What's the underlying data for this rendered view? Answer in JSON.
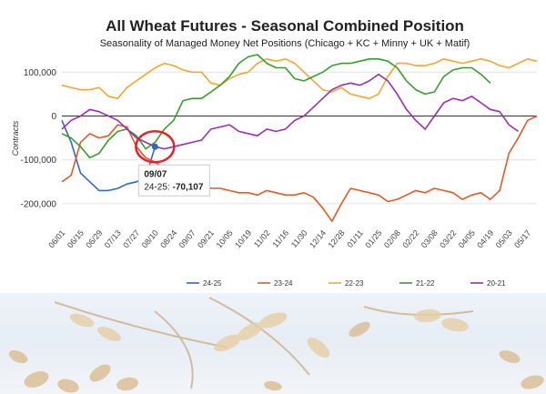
{
  "chart_data": {
    "type": "line",
    "title": "All Wheat Futures - Seasonal Combined Position",
    "subtitle": "Seasonality of Managed Money Net Positions (Chicago + KC + Minny + UK + Matif)",
    "ylabel": "Contracts",
    "xlabel": "",
    "ylim": [
      -250000,
      140000
    ],
    "yticks": [
      {
        "value": 100000,
        "label": "100,000"
      },
      {
        "value": 0,
        "label": "0"
      },
      {
        "value": -100000,
        "label": "-100,000"
      },
      {
        "value": -200000,
        "label": "-200,000"
      }
    ],
    "x_tick_labels": [
      "06/01",
      "06/15",
      "06/29",
      "07/13",
      "07/27",
      "08/10",
      "08/24",
      "09/07",
      "09/21",
      "10/05",
      "10/19",
      "11/02",
      "11/16",
      "11/30",
      "12/14",
      "12/28",
      "01/11",
      "01/25",
      "02/08",
      "02/22",
      "03/08",
      "03/22",
      "04/05",
      "04/19",
      "05/03",
      "05/17"
    ],
    "grid": true,
    "legend_position": "bottom",
    "series": [
      {
        "name": "24-25",
        "color": "#3366cc",
        "x_start": 0,
        "values": [
          -10000,
          -60000,
          -130000,
          -150000,
          -170000,
          -170000,
          -165000,
          -155000,
          -150000,
          -140000,
          -70107
        ]
      },
      {
        "name": "23-24",
        "color": "#e05a27",
        "x_start": 0,
        "values": [
          -150000,
          -135000,
          -60000,
          -40000,
          -50000,
          -45000,
          -20000,
          -25000,
          -70000,
          -95000,
          -105000,
          -120000,
          -140000,
          -145000,
          -150000,
          -155000,
          -165000,
          -165000,
          -170000,
          -175000,
          -175000,
          -180000,
          -170000,
          -175000,
          -180000,
          -180000,
          -175000,
          -185000,
          -210000,
          -240000,
          -200000,
          -165000,
          -170000,
          -175000,
          -180000,
          -195000,
          -190000,
          -180000,
          -170000,
          -175000,
          -165000,
          -170000,
          -175000,
          -190000,
          -180000,
          -175000,
          -190000,
          -170000,
          -85000,
          -50000,
          -10000,
          0
        ]
      },
      {
        "name": "22-23",
        "color": "#f0a830",
        "x_start": 0,
        "values": [
          70000,
          65000,
          60000,
          60000,
          65000,
          45000,
          40000,
          65000,
          80000,
          95000,
          110000,
          120000,
          115000,
          105000,
          100000,
          100000,
          75000,
          70000,
          85000,
          95000,
          100000,
          120000,
          130000,
          125000,
          130000,
          120000,
          100000,
          80000,
          60000,
          55000,
          65000,
          50000,
          45000,
          40000,
          50000,
          90000,
          120000,
          120000,
          115000,
          115000,
          120000,
          130000,
          125000,
          120000,
          125000,
          130000,
          125000,
          115000,
          110000,
          120000,
          130000,
          125000
        ]
      },
      {
        "name": "21-22",
        "color": "#33a02c",
        "x_start": 0,
        "values": [
          -40000,
          -50000,
          -70000,
          -95000,
          -85000,
          -55000,
          -35000,
          -30000,
          -45000,
          -75000,
          -60000,
          -30000,
          -10000,
          35000,
          40000,
          40000,
          55000,
          70000,
          90000,
          120000,
          135000,
          140000,
          120000,
          110000,
          110000,
          85000,
          80000,
          90000,
          100000,
          115000,
          120000,
          120000,
          125000,
          130000,
          130000,
          125000,
          110000,
          80000,
          60000,
          50000,
          55000,
          90000,
          105000,
          110000,
          110000,
          95000,
          75000
        ]
      },
      {
        "name": "20-21",
        "color": "#9b2fae",
        "x_start": 0,
        "values": [
          -30000,
          -10000,
          0,
          15000,
          10000,
          0,
          -10000,
          -30000,
          -50000,
          -60000,
          -70000,
          -75000,
          -70000,
          -65000,
          -60000,
          -55000,
          -30000,
          -25000,
          -20000,
          -35000,
          -40000,
          -45000,
          -30000,
          -35000,
          -30000,
          -10000,
          0,
          20000,
          40000,
          60000,
          70000,
          75000,
          70000,
          80000,
          95000,
          80000,
          50000,
          15000,
          -10000,
          -30000,
          0,
          30000,
          40000,
          35000,
          45000,
          30000,
          15000,
          10000,
          -20000,
          -35000
        ]
      }
    ],
    "tooltip": {
      "date": "09/07",
      "series": "24-25",
      "value_label": "-70,107",
      "value": -70107
    }
  }
}
